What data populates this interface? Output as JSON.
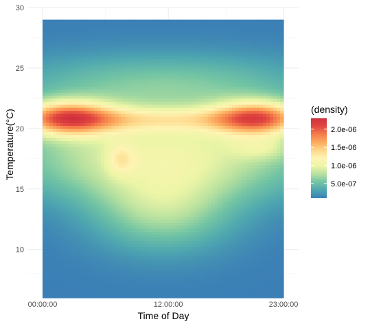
{
  "chart_data": {
    "type": "heatmap",
    "title": "",
    "xlabel": "Time of Day",
    "ylabel": "Temperature(°C)",
    "x_ticks": [
      "00:00:00",
      "12:00:00",
      "23:00:00"
    ],
    "x_tick_hours": [
      0,
      12,
      23
    ],
    "xlim_hours": [
      0,
      23
    ],
    "ylim": [
      6,
      29
    ],
    "y_axis_range": [
      6,
      30
    ],
    "y_ticks": [
      10,
      15,
      20,
      25,
      30
    ],
    "grid": true,
    "legend": {
      "title": "(density)",
      "position": "right",
      "labels": [
        "2.0e-06",
        "1.5e-06",
        "1.0e-06",
        "5.0e-07"
      ],
      "values": [
        2e-06,
        1.5e-06,
        1e-06,
        5e-07
      ],
      "min": 1e-07,
      "max": 2.3e-06
    },
    "colorscale": [
      "#3b7fb6",
      "#4ea6b0",
      "#72c4a4",
      "#b6e09f",
      "#ecf5a6",
      "#fff4b4",
      "#fdd88a",
      "#fcaa5e",
      "#f47d4a",
      "#e2473f",
      "#d0303f"
    ],
    "components": [
      {
        "hour_center": 2.3,
        "hour_spread": 3.2,
        "temp_center": 20.9,
        "temp_spread": 1.0,
        "weight": 1.45
      },
      {
        "hour_center": 20.6,
        "hour_spread": 3.0,
        "temp_center": 20.9,
        "temp_spread": 1.0,
        "weight": 1.35
      },
      {
        "hour_center": 11.5,
        "hour_spread": 7.5,
        "temp_center": 20.8,
        "temp_spread": 0.7,
        "weight": 0.55
      },
      {
        "hour_center": 11.5,
        "hour_spread": 10.0,
        "temp_center": 18.8,
        "temp_spread": 2.4,
        "weight": 0.72
      },
      {
        "hour_center": 11.5,
        "hour_spread": 11.0,
        "temp_center": 23.8,
        "temp_spread": 1.8,
        "weight": 0.42
      },
      {
        "hour_center": 11.5,
        "hour_spread": 4.8,
        "temp_center": 13.2,
        "temp_spread": 2.4,
        "weight": 0.58
      },
      {
        "hour_center": 11.5,
        "hour_spread": 12.0,
        "temp_center": 16.0,
        "temp_spread": 2.0,
        "weight": 0.28
      },
      {
        "hour_center": 7.5,
        "hour_spread": 0.9,
        "temp_center": 17.5,
        "temp_spread": 0.9,
        "weight": 0.35
      },
      {
        "hour_center": 21.0,
        "hour_spread": 2.0,
        "temp_center": 18.4,
        "temp_spread": 0.7,
        "weight": 0.3
      }
    ],
    "z_max": 2.3e-06
  }
}
